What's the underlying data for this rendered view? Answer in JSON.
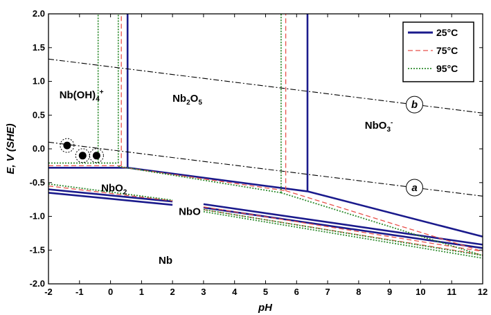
{
  "chart_data": {
    "type": "line",
    "title": "",
    "xlabel": "pH",
    "ylabel": "E, V (SHE)",
    "xlim": [
      -2,
      12
    ],
    "ylim": [
      -2.0,
      2.0
    ],
    "xticks": [
      -2,
      -1,
      0,
      1,
      2,
      3,
      4,
      5,
      6,
      7,
      8,
      9,
      10,
      11,
      12
    ],
    "yticks": [
      {
        "value": 2.0,
        "label": "2.0"
      },
      {
        "value": 1.5,
        "label": "1.5"
      },
      {
        "value": 1.0,
        "label": "1.0"
      },
      {
        "value": 0.5,
        "label": "0.5"
      },
      {
        "value": 0.0,
        "label": "0.0"
      },
      {
        "value": -0.5,
        "label": "-0.5"
      },
      {
        "value": -1.0,
        "label": "-1.0"
      },
      {
        "value": -1.5,
        "label": "-1.5"
      },
      {
        "value": -2.0,
        "label": "-2.0"
      }
    ],
    "legend": {
      "placement": "top-right",
      "entries": [
        {
          "name": "25°C",
          "color": "#1a1a8c",
          "style": "solid"
        },
        {
          "name": "75°C",
          "color": "#e8504a",
          "style": "dashed"
        },
        {
          "name": "95°C",
          "color": "#2e8b2e",
          "style": "dotted"
        }
      ]
    },
    "series": [
      {
        "name": "25°C",
        "segments": [
          [
            [
              -2,
              -0.28
            ],
            [
              0.55,
              -0.28
            ]
          ],
          [
            [
              0.55,
              -0.28
            ],
            [
              0.55,
              2.0
            ]
          ],
          [
            [
              0.55,
              -0.28
            ],
            [
              6.35,
              -0.63
            ]
          ],
          [
            [
              6.35,
              -0.63
            ],
            [
              6.35,
              2.0
            ]
          ],
          [
            [
              6.35,
              -0.63
            ],
            [
              12,
              -1.3
            ]
          ],
          [
            [
              -2,
              -0.6
            ],
            [
              2,
              -0.78
            ]
          ],
          [
            [
              -2,
              -0.65
            ],
            [
              2,
              -0.83
            ]
          ],
          [
            [
              3,
              -0.82
            ],
            [
              12,
              -1.42
            ]
          ],
          [
            [
              3,
              -0.87
            ],
            [
              12,
              -1.47
            ]
          ]
        ]
      },
      {
        "name": "75°C",
        "segments": [
          [
            [
              -2,
              -0.25
            ],
            [
              0.35,
              -0.25
            ]
          ],
          [
            [
              0.35,
              -0.25
            ],
            [
              0.35,
              2.0
            ]
          ],
          [
            [
              0.35,
              -0.27
            ],
            [
              5.65,
              -0.62
            ]
          ],
          [
            [
              5.65,
              -0.62
            ],
            [
              5.65,
              2.0
            ]
          ],
          [
            [
              5.65,
              -0.62
            ],
            [
              12,
              -1.52
            ]
          ],
          [
            [
              -2,
              -0.55
            ],
            [
              2,
              -0.77
            ]
          ],
          [
            [
              3,
              -0.86
            ],
            [
              12,
              -1.52
            ]
          ],
          [
            [
              3,
              -0.9
            ],
            [
              12,
              -1.57
            ]
          ]
        ]
      },
      {
        "name": "95°C",
        "segments": [
          [
            [
              -2,
              -0.21
            ],
            [
              0.25,
              -0.21
            ]
          ],
          [
            [
              0.25,
              -0.21
            ],
            [
              0.25,
              2.0
            ]
          ],
          [
            [
              -0.4,
              -0.21
            ],
            [
              -0.4,
              2.0
            ]
          ],
          [
            [
              0.25,
              -0.26
            ],
            [
              5.5,
              -0.65
            ]
          ],
          [
            [
              5.5,
              -0.65
            ],
            [
              5.5,
              2.0
            ]
          ],
          [
            [
              5.5,
              -0.65
            ],
            [
              12,
              -1.58
            ]
          ],
          [
            [
              -2,
              -0.52
            ],
            [
              2,
              -0.76
            ]
          ],
          [
            [
              3,
              -0.9
            ],
            [
              12,
              -1.58
            ]
          ],
          [
            [
              3,
              -0.93
            ],
            [
              12,
              -1.62
            ]
          ]
        ]
      }
    ],
    "reference_lines": [
      {
        "label": "b",
        "points": [
          [
            -2,
            1.33
          ],
          [
            12,
            0.53
          ]
        ],
        "label_at": 9.8
      },
      {
        "label": "a",
        "points": [
          [
            -2,
            0.1
          ],
          [
            12,
            -0.7
          ]
        ],
        "label_at": 9.8
      }
    ],
    "region_labels": [
      {
        "label": "Nb(OH)",
        "sub": "4",
        "sup": "+",
        "x": -1.65,
        "y": 0.75
      },
      {
        "label": "Nb",
        "sub": "2",
        "label2": "O",
        "sub2": "5",
        "x": 2.0,
        "y": 0.7
      },
      {
        "label": "NbO",
        "sub": "3",
        "sup": "-",
        "x": 8.2,
        "y": 0.3
      },
      {
        "label": "NbO",
        "sub": "2",
        "x": -0.3,
        "y": -0.63
      },
      {
        "label": "NbO",
        "x": 2.2,
        "y": -0.98
      },
      {
        "label": "Nb",
        "x": 1.55,
        "y": -1.7
      }
    ],
    "markers": [
      {
        "x": -1.4,
        "y": 0.05
      },
      {
        "x": -0.9,
        "y": -0.1
      },
      {
        "x": -0.45,
        "y": -0.1
      }
    ]
  }
}
